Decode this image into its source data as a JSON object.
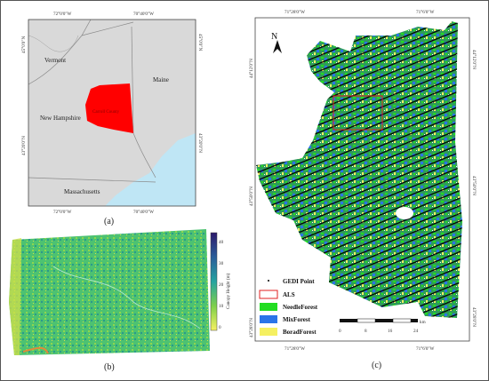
{
  "panel_a": {
    "caption": "(a)",
    "coords_top": [
      "72°0'0\"W",
      "70°40'0\"W"
    ],
    "coords_bottom": [
      "72°0'0\"W",
      "70°40'0\"W"
    ],
    "coords_left": [
      "45°0'0\"N",
      "43°20'0\"N"
    ],
    "coords_right": [
      "45°0'0\"N",
      "43°20'0\"N"
    ],
    "states": [
      "Vermont",
      "Maine",
      "New Hampshire",
      "Massachusetts"
    ],
    "study_label": "Carroll County"
  },
  "panel_b": {
    "caption": "(b)",
    "colorbar_ticks": [
      "40",
      "30",
      "20",
      "10",
      "0"
    ],
    "colorbar_title": "Canopy Height (m)"
  },
  "panel_c": {
    "caption": "(c)",
    "coords_top": [
      "71°28'0\"W",
      "71°6'0\"W"
    ],
    "coords_bottom": [
      "71°28'0\"W",
      "71°6'0\"W"
    ],
    "coords_left": [
      "44°12'0\"N",
      "43°50'0\"N",
      "43°28'0\"N"
    ],
    "coords_right": [
      "44°12'0\"N",
      "43°50'0\"N",
      "43°28'0\"N"
    ],
    "north_label": "N",
    "legend": [
      {
        "label": "GEDI Point",
        "kind": "dot",
        "color": "#000000"
      },
      {
        "label": "ALS",
        "kind": "outline",
        "color": "#e02020"
      },
      {
        "label": "NeedleForest",
        "kind": "fill",
        "color": "#22dd22"
      },
      {
        "label": "MixForest",
        "kind": "fill",
        "color": "#2a74e8"
      },
      {
        "label": "BoradForest",
        "kind": "fill",
        "color": "#f5f061"
      }
    ],
    "scale_ticks": [
      "0",
      "8",
      "16",
      "24"
    ],
    "scale_unit": "km"
  },
  "colors": {
    "land": "#d9d9d9",
    "water": "#bfe6f5",
    "county": "#ff0000",
    "border": "#444444"
  }
}
